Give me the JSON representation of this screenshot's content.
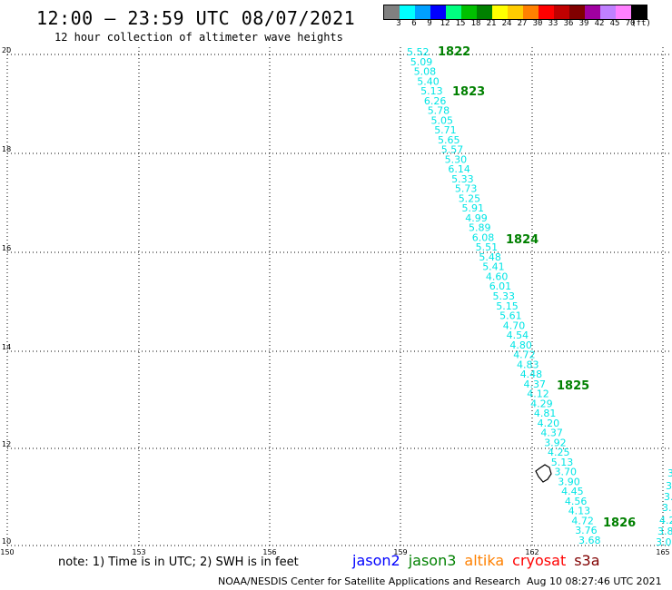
{
  "header": {
    "title": "12:00 – 23:59 UTC 08/07/2021",
    "subtitle": "12 hour collection of altimeter wave heights"
  },
  "legend": {
    "colors": [
      "#808080",
      "#00ffff",
      "#00a0ff",
      "#0000ff",
      "#00ff80",
      "#00c000",
      "#008000",
      "#ffff00",
      "#ffcc00",
      "#ff8000",
      "#ff0000",
      "#c00000",
      "#800000",
      "#a000a0",
      "#c080ff",
      "#ff80ff",
      "#000000"
    ],
    "labels": [
      "3",
      "6",
      "9",
      "12",
      "15",
      "18",
      "21",
      "24",
      "27",
      "30",
      "33",
      "36",
      "39",
      "42",
      "45",
      "70",
      "(ft)"
    ]
  },
  "map": {
    "lat_labels": [
      "20",
      "18",
      "16",
      "14",
      "12",
      "10"
    ],
    "lon_labels": [
      "150",
      "153",
      "156",
      "159",
      "162",
      "165"
    ],
    "pass_labels": [
      "1822",
      "1823",
      "1824",
      "1825",
      "1826"
    ],
    "track_values": [
      "5.52",
      "5.09",
      "5.08",
      "5.40",
      "5.13",
      "6.26",
      "5.78",
      "5.05",
      "5.71",
      "5.65",
      "5.57",
      "5.30",
      "6.14",
      "5.33",
      "5.73",
      "5.25",
      "5.91",
      "4.99",
      "5.89",
      "6.08",
      "5.51",
      "5.48",
      "5.41",
      "4.60",
      "6.01",
      "5.33",
      "5.15",
      "5.61",
      "4.70",
      "4.54",
      "4.80",
      "4.72",
      "4.83",
      "4.48",
      "4.37",
      "4.12",
      "4.29",
      "4.81",
      "4.20",
      "4.37",
      "3.92",
      "4.25",
      "5.13",
      "3.70",
      "3.90",
      "4.45",
      "4.56",
      "4.13",
      "4.72",
      "3.76",
      "3.68"
    ],
    "edge_values": [
      "3.",
      "3.",
      "3.",
      "3.",
      "4.2",
      "3.8",
      "3.0"
    ]
  },
  "footer": {
    "note": "note: 1) Time is in UTC; 2) SWH is in feet",
    "missions": [
      {
        "name": "jason2",
        "color": "#0000ff"
      },
      {
        "name": "jason3",
        "color": "#008000"
      },
      {
        "name": "altika",
        "color": "#ff8000"
      },
      {
        "name": "cryosat",
        "color": "#ff0000"
      },
      {
        "name": "s3a",
        "color": "#800000"
      }
    ],
    "credit": "NOAA/NESDIS Center for Satellite Applications and Research",
    "timestamp": "Aug 10 08:27:46 UTC 2021"
  }
}
